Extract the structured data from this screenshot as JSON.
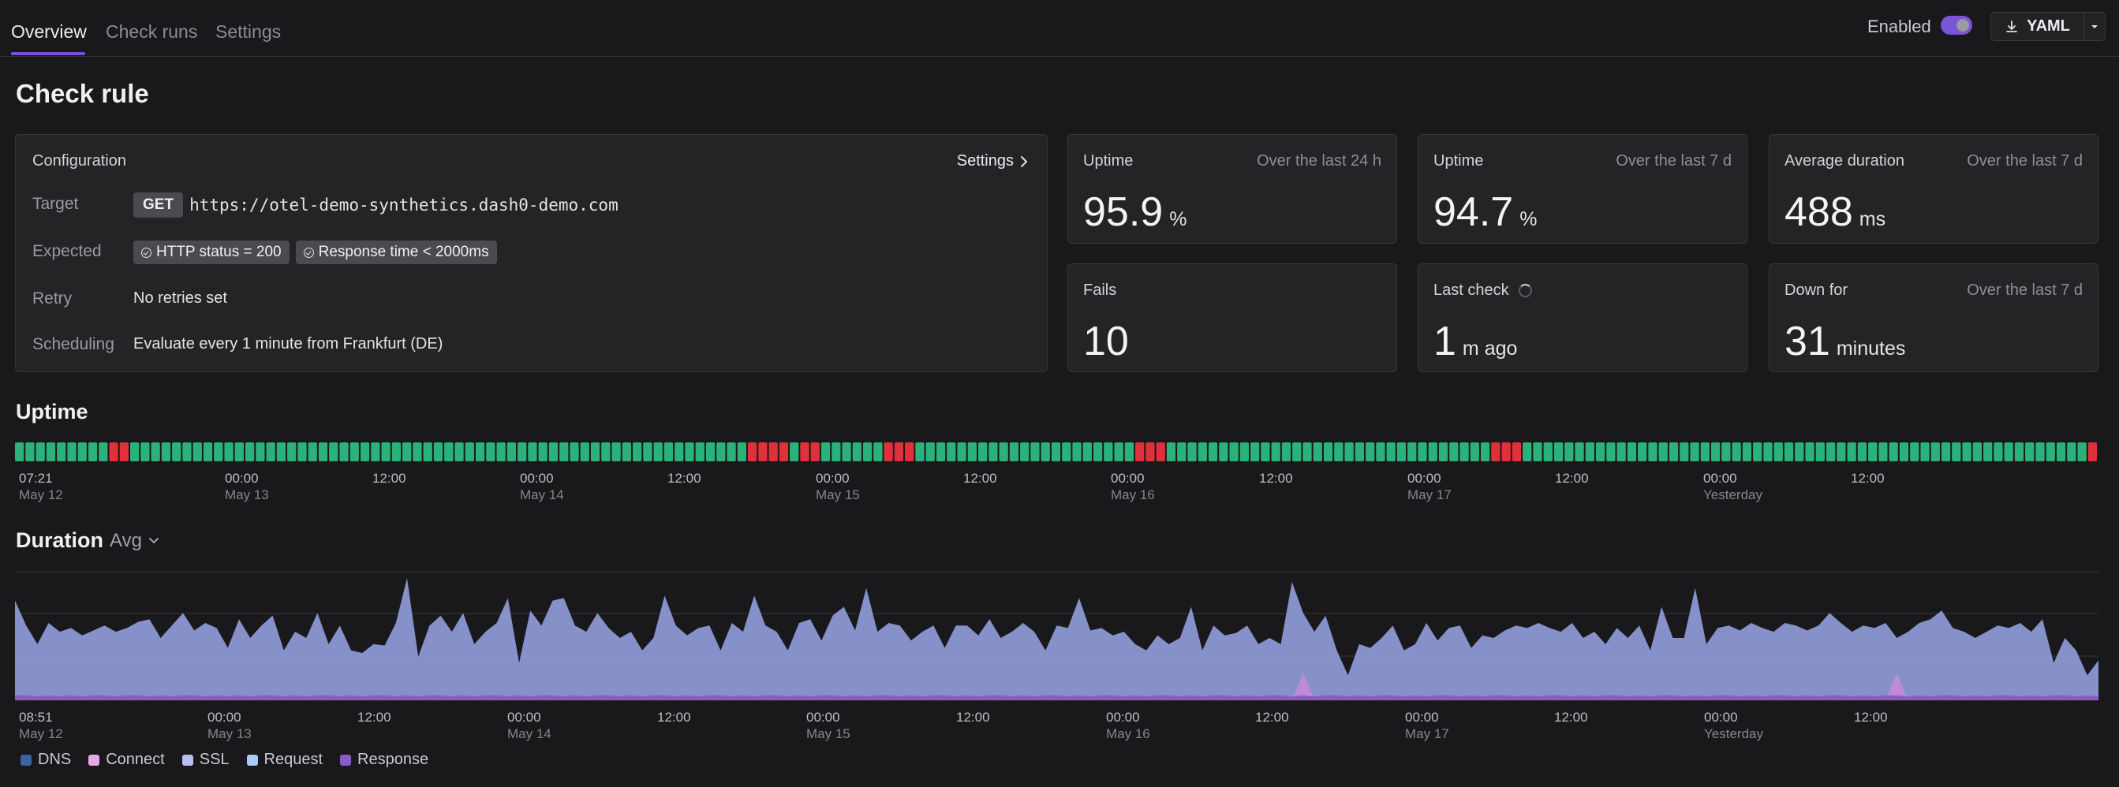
{
  "nav": {
    "tabs": [
      {
        "label": "Overview",
        "active": true
      },
      {
        "label": "Check runs",
        "active": false
      },
      {
        "label": "Settings",
        "active": false
      }
    ],
    "enabled_label": "Enabled",
    "enabled": true,
    "yaml_label": "YAML",
    "download_icon": "download-icon",
    "dropdown_icon": "chevron-down-icon"
  },
  "page": {
    "title": "Check rule"
  },
  "config": {
    "title": "Configuration",
    "settings_link": "Settings",
    "target_label": "Target",
    "method": "GET",
    "url": "https://otel-demo-synthetics.dash0-demo.com",
    "expected_label": "Expected",
    "expected": [
      "HTTP status = 200",
      "Response time < 2000ms"
    ],
    "retry_label": "Retry",
    "retry_value": "No retries set",
    "scheduling_label": "Scheduling",
    "scheduling_value": "Evaluate every 1 minute from Frankfurt (DE)"
  },
  "stats": {
    "uptime24": {
      "label": "Uptime",
      "sub": "Over the last 24 h",
      "value": "95.9",
      "unit": "%"
    },
    "uptime7": {
      "label": "Uptime",
      "sub": "Over the last 7 d",
      "value": "94.7",
      "unit": "%"
    },
    "avgdur": {
      "label": "Average duration",
      "sub": "Over the last 7 d",
      "value": "488",
      "unit": "ms"
    },
    "fails": {
      "label": "Fails",
      "value": "10"
    },
    "lastcheck": {
      "label": "Last check",
      "value": "1",
      "unit": "m ago"
    },
    "downfor": {
      "label": "Down for",
      "sub": "Over the last 7 d",
      "value": "31",
      "unit": "minutes"
    }
  },
  "uptime": {
    "title": "Uptime",
    "colors": {
      "up": "#2bb17a",
      "down": "#e0313b"
    },
    "statuses": "uuuuuuuuudduuuuuuuuuuuuuuuuuuuuuuuuuuuuuuuuuuuuuuuuuuuuuuuuuuuuuuuuuuuddddudduuuuuuddduuuuuuuuuuuuuuuuuuuuuddduuuuuuuuuuuuuuuuuuuuuuuuuuuuuuuddduuuuuuuuuuuuuuuuuuuuuuuuuuuuuuuuuuuuuuuuuuuuuuuuuuuuuud",
    "ticks": [
      {
        "t": "07:21",
        "d": "May 12"
      },
      {
        "t": "00:00",
        "d": "May 13"
      },
      {
        "t": "12:00",
        "d": ""
      },
      {
        "t": "00:00",
        "d": "May 14"
      },
      {
        "t": "12:00",
        "d": ""
      },
      {
        "t": "00:00",
        "d": "May 15"
      },
      {
        "t": "12:00",
        "d": ""
      },
      {
        "t": "00:00",
        "d": "May 16"
      },
      {
        "t": "12:00",
        "d": ""
      },
      {
        "t": "00:00",
        "d": "May 17"
      },
      {
        "t": "12:00",
        "d": ""
      },
      {
        "t": "00:00",
        "d": "Yesterday"
      },
      {
        "t": "12:00",
        "d": ""
      }
    ]
  },
  "duration": {
    "title": "Duration",
    "aggregation": "Avg",
    "ticks": [
      {
        "t": "08:51",
        "d": "May 12"
      },
      {
        "t": "00:00",
        "d": "May 13"
      },
      {
        "t": "12:00",
        "d": ""
      },
      {
        "t": "00:00",
        "d": "May 14"
      },
      {
        "t": "12:00",
        "d": ""
      },
      {
        "t": "00:00",
        "d": "May 15"
      },
      {
        "t": "12:00",
        "d": ""
      },
      {
        "t": "00:00",
        "d": "May 16"
      },
      {
        "t": "12:00",
        "d": ""
      },
      {
        "t": "00:00",
        "d": "May 17"
      },
      {
        "t": "12:00",
        "d": ""
      },
      {
        "t": "00:00",
        "d": "Yesterday"
      },
      {
        "t": "12:00",
        "d": ""
      }
    ],
    "legend": [
      {
        "name": "DNS",
        "color": "#3a63a8"
      },
      {
        "name": "Connect",
        "color": "#e7a8e6"
      },
      {
        "name": "SSL",
        "color": "#b9bff5"
      },
      {
        "name": "Request",
        "color": "#a8ccf5"
      },
      {
        "name": "Response",
        "color": "#8a5ac8"
      }
    ]
  },
  "chart_data": {
    "type": "area",
    "title": "Duration",
    "series": [
      {
        "name": "Request",
        "values": [
          0.8,
          0.6,
          0.45,
          0.62,
          0.55,
          0.58,
          0.52,
          0.56,
          0.6,
          0.55,
          0.58,
          0.63,
          0.65,
          0.5,
          0.6,
          0.7,
          0.56,
          0.62,
          0.58,
          0.42,
          0.65,
          0.5,
          0.6,
          0.68,
          0.4,
          0.55,
          0.5,
          0.7,
          0.45,
          0.6,
          0.4,
          0.38,
          0.45,
          0.44,
          0.62,
          0.98,
          0.35,
          0.6,
          0.68,
          0.55,
          0.7,
          0.45,
          0.55,
          0.62,
          0.82,
          0.3,
          0.72,
          0.6,
          0.8,
          0.82,
          0.6,
          0.55,
          0.7,
          0.58,
          0.5,
          0.55,
          0.4,
          0.5,
          0.84,
          0.6,
          0.52,
          0.58,
          0.6,
          0.4,
          0.62,
          0.55,
          0.84,
          0.6,
          0.55,
          0.4,
          0.62,
          0.65,
          0.48,
          0.68,
          0.75,
          0.56,
          0.9,
          0.55,
          0.62,
          0.6,
          0.48,
          0.55,
          0.6,
          0.42,
          0.6,
          0.6,
          0.52,
          0.65,
          0.5,
          0.55,
          0.62,
          0.55,
          0.4,
          0.6,
          0.58,
          0.82,
          0.56,
          0.58,
          0.52,
          0.55,
          0.45,
          0.4,
          0.52,
          0.45,
          0.5,
          0.75,
          0.4,
          0.6,
          0.52,
          0.54,
          0.6,
          0.45,
          0.5,
          0.45,
          0.95,
          0.7,
          0.55,
          0.68,
          0.4,
          0.2,
          0.45,
          0.42,
          0.5,
          0.6,
          0.4,
          0.45,
          0.62,
          0.48,
          0.58,
          0.6,
          0.42,
          0.52,
          0.5,
          0.56,
          0.6,
          0.58,
          0.62,
          0.58,
          0.55,
          0.62,
          0.5,
          0.55,
          0.45,
          0.58,
          0.5,
          0.6,
          0.4,
          0.75,
          0.5,
          0.5,
          0.9,
          0.45,
          0.58,
          0.6,
          0.56,
          0.62,
          0.58,
          0.55,
          0.62,
          0.6,
          0.56,
          0.6,
          0.7,
          0.62,
          0.55,
          0.6,
          0.58,
          0.62,
          0.5,
          0.55,
          0.62,
          0.65,
          0.72,
          0.58,
          0.55,
          0.5,
          0.55,
          0.6,
          0.58,
          0.62,
          0.55,
          0.65,
          0.3,
          0.5,
          0.4,
          0.2,
          0.32
        ]
      },
      {
        "name": "Response",
        "values": [
          0.04,
          0.04,
          0.03,
          0.04,
          0.03,
          0.04,
          0.03,
          0.04,
          0.04,
          0.03,
          0.04,
          0.04,
          0.03,
          0.04,
          0.03,
          0.04,
          0.04,
          0.03,
          0.04,
          0.03,
          0.04,
          0.03,
          0.04,
          0.04,
          0.03,
          0.04,
          0.03,
          0.04,
          0.04,
          0.03,
          0.04,
          0.03,
          0.04,
          0.04,
          0.03,
          0.04,
          0.03,
          0.04,
          0.04,
          0.03,
          0.04,
          0.03,
          0.04,
          0.04,
          0.03,
          0.04,
          0.03,
          0.04,
          0.04,
          0.03,
          0.04,
          0.03,
          0.04,
          0.04,
          0.03,
          0.04,
          0.03,
          0.04,
          0.04,
          0.03,
          0.04,
          0.03,
          0.04,
          0.04,
          0.03,
          0.04,
          0.03,
          0.04,
          0.04,
          0.03,
          0.04,
          0.03,
          0.04,
          0.04,
          0.03,
          0.04,
          0.03,
          0.04,
          0.04,
          0.03,
          0.04,
          0.03,
          0.04,
          0.04,
          0.03,
          0.04,
          0.03,
          0.04,
          0.04,
          0.03,
          0.04,
          0.03,
          0.04,
          0.04,
          0.03,
          0.04,
          0.03,
          0.04,
          0.04,
          0.03,
          0.04,
          0.03,
          0.04,
          0.04,
          0.03,
          0.04,
          0.03,
          0.04,
          0.04,
          0.03,
          0.04,
          0.03,
          0.04,
          0.04,
          0.03,
          0.04,
          0.03,
          0.04,
          0.04,
          0.03,
          0.04,
          0.03,
          0.04,
          0.04,
          0.03,
          0.04,
          0.03,
          0.04,
          0.04,
          0.03,
          0.04,
          0.03,
          0.04,
          0.04,
          0.03,
          0.04,
          0.03,
          0.04,
          0.04,
          0.03,
          0.04,
          0.03,
          0.04,
          0.04,
          0.03,
          0.04,
          0.03,
          0.04,
          0.04,
          0.03,
          0.04,
          0.03,
          0.04,
          0.04,
          0.03,
          0.04,
          0.03,
          0.04,
          0.04,
          0.03,
          0.04,
          0.03,
          0.04,
          0.04,
          0.03,
          0.04,
          0.03,
          0.04,
          0.04,
          0.03,
          0.04,
          0.03,
          0.04,
          0.04,
          0.03,
          0.04,
          0.03,
          0.04,
          0.04,
          0.03,
          0.04,
          0.03,
          0.04,
          0.04,
          0.03,
          0.04,
          0.03,
          0.04,
          0.04,
          0.03
        ]
      },
      {
        "name": "Connect",
        "values": [
          0,
          0,
          0,
          0,
          0,
          0,
          0,
          0,
          0,
          0,
          0,
          0,
          0,
          0,
          0,
          0,
          0,
          0,
          0,
          0,
          0,
          0,
          0,
          0,
          0,
          0,
          0,
          0,
          0,
          0,
          0,
          0,
          0,
          0,
          0,
          0,
          0,
          0,
          0,
          0,
          0,
          0,
          0,
          0,
          0,
          0,
          0,
          0,
          0,
          0,
          0,
          0,
          0,
          0,
          0,
          0,
          0,
          0,
          0,
          0,
          0,
          0,
          0,
          0,
          0,
          0,
          0,
          0,
          0,
          0,
          0,
          0,
          0,
          0,
          0,
          0,
          0,
          0,
          0,
          0,
          0,
          0,
          0,
          0,
          0,
          0,
          0,
          0,
          0,
          0,
          0,
          0,
          0,
          0,
          0,
          0,
          0,
          0,
          0,
          0,
          0,
          0,
          0,
          0,
          0,
          0,
          0,
          0,
          0,
          0,
          0,
          0,
          0,
          0,
          0,
          0.22,
          0,
          0,
          0,
          0,
          0,
          0,
          0,
          0,
          0,
          0,
          0,
          0,
          0,
          0,
          0,
          0,
          0,
          0,
          0,
          0,
          0,
          0,
          0,
          0,
          0,
          0,
          0,
          0,
          0,
          0,
          0,
          0,
          0,
          0,
          0,
          0,
          0,
          0,
          0,
          0,
          0,
          0,
          0,
          0,
          0,
          0,
          0,
          0,
          0,
          0,
          0,
          0,
          0.22,
          0,
          0,
          0,
          0,
          0,
          0,
          0,
          0,
          0,
          0,
          0,
          0,
          0,
          0,
          0,
          0,
          0,
          0,
          0,
          0
        ]
      }
    ],
    "grid": true,
    "legend_placement": "bottom-left"
  }
}
